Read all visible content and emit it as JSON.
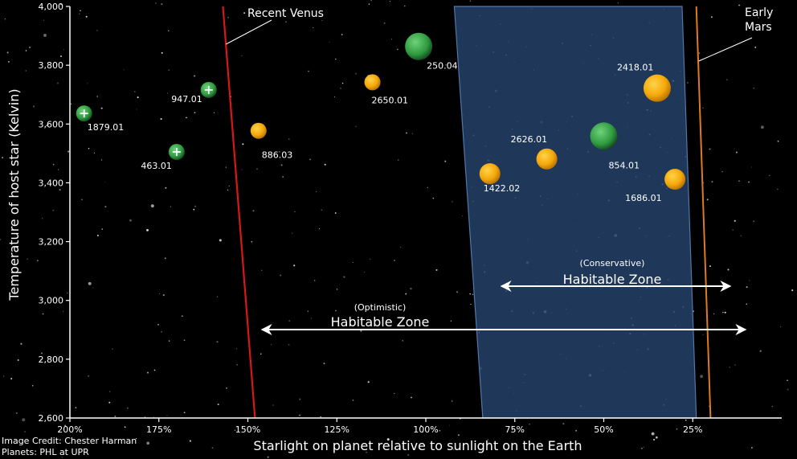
{
  "chart_data": {
    "type": "scatter",
    "xlabel": "Starlight on planet relative to sunlight on the Earth",
    "ylabel": "Temperature of host star (Kelvin)",
    "xlim": [
      2.0,
      0.0
    ],
    "ylim": [
      2600,
      4000
    ],
    "x_ticks": [
      2.0,
      1.75,
      1.5,
      1.25,
      1.0,
      0.75,
      0.5,
      0.25
    ],
    "x_tick_labels": [
      "200%",
      "175%",
      "150%",
      "125%",
      "100%",
      "75%",
      "50%",
      "25%"
    ],
    "y_ticks": [
      2600,
      2800,
      3000,
      3200,
      3400,
      3600,
      3800,
      4000
    ],
    "y_tick_labels": [
      "2,600",
      "2,800",
      "3,000",
      "3,200",
      "3,400",
      "3,600",
      "3,800",
      "4,000"
    ],
    "background": "starfield",
    "colors": {
      "orange": "#f5a80a",
      "green": "#3ea04a",
      "venus_line": "#d8161c",
      "mars_line": "#e07a20",
      "conservative_zone": "#26436b"
    },
    "points": [
      {
        "label": "1879.01",
        "x": 1.96,
        "y": 3636,
        "color": "green",
        "marker": "plus",
        "size": "small"
      },
      {
        "label": "947.01",
        "x": 1.61,
        "y": 3716,
        "color": "green",
        "marker": "plus",
        "size": "small"
      },
      {
        "label": "463.01",
        "x": 1.7,
        "y": 3505,
        "color": "green",
        "marker": "plus",
        "size": "small"
      },
      {
        "label": "886.03",
        "x": 1.47,
        "y": 3577,
        "color": "orange",
        "marker": "circle",
        "size": "small"
      },
      {
        "label": "2650.01",
        "x": 1.15,
        "y": 3742,
        "color": "orange",
        "marker": "circle",
        "size": "small"
      },
      {
        "label": "250.04",
        "x": 1.02,
        "y": 3864,
        "color": "green",
        "marker": "circle",
        "size": "large"
      },
      {
        "label": "1422.02",
        "x": 0.82,
        "y": 3431,
        "color": "orange",
        "marker": "circle",
        "size": "medium"
      },
      {
        "label": "2626.01",
        "x": 0.66,
        "y": 3481,
        "color": "orange",
        "marker": "circle",
        "size": "medium"
      },
      {
        "label": "854.01",
        "x": 0.5,
        "y": 3559,
        "color": "green",
        "marker": "circle",
        "size": "large"
      },
      {
        "label": "2418.01",
        "x": 0.35,
        "y": 3722,
        "color": "orange",
        "marker": "circle",
        "size": "large"
      },
      {
        "label": "1686.01",
        "x": 0.3,
        "y": 3412,
        "color": "orange",
        "marker": "circle",
        "size": "medium"
      }
    ],
    "boundaries": {
      "recent_venus": {
        "label": "Recent Venus",
        "x_top": 1.57,
        "x_bottom": 1.48
      },
      "early_mars": {
        "label_line1": "Early",
        "label_line2": "Mars",
        "x_top": 0.24,
        "x_bottom": 0.2
      }
    },
    "zones": {
      "conservative": {
        "qualifier": "(Conservative)",
        "label": "Habitable Zone",
        "x_left_top": 0.92,
        "x_left_bottom": 0.84,
        "x_right_top": 0.28,
        "x_right_bottom": 0.24
      },
      "optimistic": {
        "qualifier": "(Optimistic)",
        "label": "Habitable Zone"
      }
    }
  },
  "credits": {
    "image": "Image Credit: Chester Harman",
    "planets": "Planets: PHL at UPR"
  }
}
